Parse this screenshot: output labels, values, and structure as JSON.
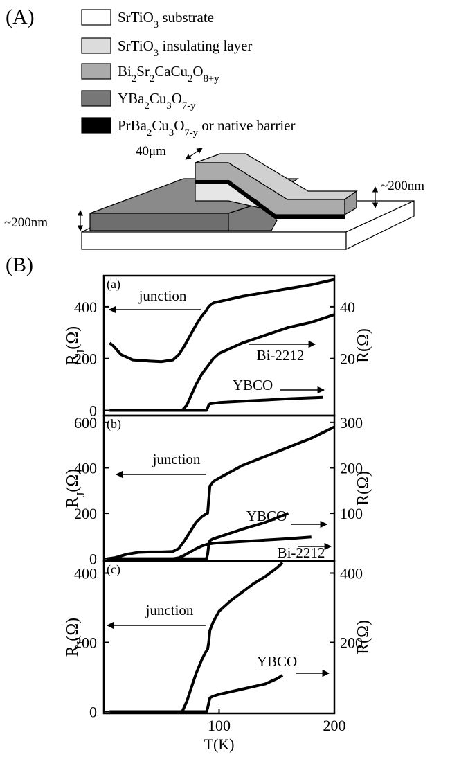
{
  "figure": {
    "panel_a": "(A)",
    "panel_b": "(B)"
  },
  "legend": [
    {
      "label": "SrTiO3 substrate",
      "color": "#ffffff"
    },
    {
      "label": "SrTiO3  insulating layer",
      "color": "#dcdcdc"
    },
    {
      "label": "Bi2Sr2CaCu2O8+y",
      "color": "#ababab"
    },
    {
      "label": "YBa2Cu3O7-y",
      "color": "#777777"
    },
    {
      "label": "PrBa2Cu3O7-y or native barrier",
      "color": "#000000"
    }
  ],
  "diagram": {
    "width_label": "40μm",
    "height_labels": [
      "~200nm",
      "~200nm"
    ]
  },
  "chart_data": [
    {
      "type": "line",
      "panel_label": "(a)",
      "xlim": [
        0,
        200
      ],
      "ylim": [
        -20,
        520
      ],
      "yticks": [
        0,
        200,
        400
      ],
      "y2lim": [
        -2,
        52
      ],
      "y2ticks": [
        20,
        40
      ],
      "ylabel": "RJ(Ω)",
      "y2label": "R(Ω)",
      "series": [
        {
          "name": "junction",
          "color": "#000000",
          "x": [
            5,
            8,
            15,
            25,
            40,
            50,
            60,
            65,
            70,
            75,
            80,
            85,
            88,
            90,
            91,
            92,
            95,
            100,
            120,
            140,
            160,
            180,
            200
          ],
          "values": [
            260,
            250,
            215,
            195,
            190,
            188,
            195,
            215,
            250,
            290,
            330,
            365,
            380,
            395,
            400,
            405,
            415,
            420,
            440,
            455,
            470,
            485,
            505
          ]
        },
        {
          "name": "Bi-2212",
          "color": "#000000",
          "axis": "y2",
          "x": [
            5,
            20,
            40,
            60,
            68,
            72,
            76,
            80,
            85,
            90,
            95,
            100,
            120,
            140,
            160,
            180,
            200
          ],
          "values": [
            0,
            0,
            0,
            0,
            0,
            2,
            6,
            10,
            14,
            17,
            20,
            22,
            26,
            29,
            32,
            34,
            37
          ]
        },
        {
          "name": "YBCO",
          "color": "#000000",
          "axis": "y2",
          "x": [
            5,
            30,
            60,
            89,
            90,
            91,
            92,
            100,
            120,
            140,
            160,
            190
          ],
          "values": [
            0,
            0,
            0,
            0,
            1,
            2,
            2.5,
            3,
            3.5,
            4,
            4.5,
            5
          ]
        }
      ]
    },
    {
      "type": "line",
      "panel_label": "(b)",
      "xlim": [
        0,
        200
      ],
      "ylim": [
        -10,
        630
      ],
      "yticks": [
        0,
        200,
        400,
        600
      ],
      "y2lim": [
        -5,
        315
      ],
      "y2ticks": [
        100,
        200,
        300
      ],
      "ylabel": "RJ(Ω)",
      "y2label": "R(Ω)",
      "series": [
        {
          "name": "junction",
          "color": "#000000",
          "x": [
            3,
            10,
            20,
            30,
            40,
            50,
            60,
            65,
            70,
            75,
            80,
            85,
            88,
            90,
            91,
            92,
            95,
            100,
            120,
            140,
            160,
            180,
            200
          ],
          "values": [
            0,
            5,
            20,
            28,
            30,
            30,
            32,
            45,
            80,
            120,
            160,
            185,
            195,
            200,
            260,
            320,
            340,
            355,
            410,
            450,
            490,
            530,
            580
          ]
        },
        {
          "name": "YBCO",
          "color": "#000000",
          "axis": "y2",
          "x": [
            5,
            40,
            70,
            89,
            90,
            91,
            92,
            95,
            100,
            120,
            140,
            160
          ],
          "values": [
            0,
            0,
            0,
            0,
            10,
            30,
            40,
            44,
            48,
            65,
            80,
            100
          ]
        },
        {
          "name": "Bi-2212",
          "color": "#000000",
          "axis": "y2",
          "x": [
            5,
            40,
            60,
            65,
            70,
            75,
            80,
            85,
            90,
            95,
            100,
            120,
            140,
            160,
            180
          ],
          "values": [
            0,
            0,
            0,
            2,
            8,
            15,
            22,
            28,
            32,
            34,
            35,
            38,
            41,
            44,
            48
          ]
        }
      ]
    },
    {
      "type": "line",
      "panel_label": "(c)",
      "xlim": [
        0,
        200
      ],
      "xticks": [
        100,
        200
      ],
      "xlabel": "T(K)",
      "ylim": [
        -5,
        435
      ],
      "yticks": [
        0,
        200,
        400
      ],
      "y2lim": [
        -5,
        435
      ],
      "y2ticks": [
        200,
        400
      ],
      "ylabel": "RJ(Ω)",
      "y2label": "R(Ω)",
      "series": [
        {
          "name": "junction",
          "color": "#000000",
          "x": [
            5,
            30,
            60,
            68,
            72,
            76,
            80,
            85,
            88,
            90,
            91,
            92,
            95,
            100,
            110,
            120,
            130,
            140,
            150,
            155
          ],
          "values": [
            0,
            0,
            0,
            0,
            30,
            70,
            110,
            150,
            170,
            180,
            200,
            235,
            260,
            290,
            320,
            345,
            370,
            390,
            415,
            430
          ]
        },
        {
          "name": "YBCO",
          "color": "#000000",
          "axis": "y2",
          "x": [
            5,
            40,
            70,
            89,
            90,
            91,
            92,
            95,
            100,
            120,
            140,
            150,
            155
          ],
          "values": [
            0,
            0,
            0,
            0,
            10,
            25,
            40,
            45,
            50,
            65,
            80,
            95,
            105
          ]
        }
      ]
    }
  ]
}
